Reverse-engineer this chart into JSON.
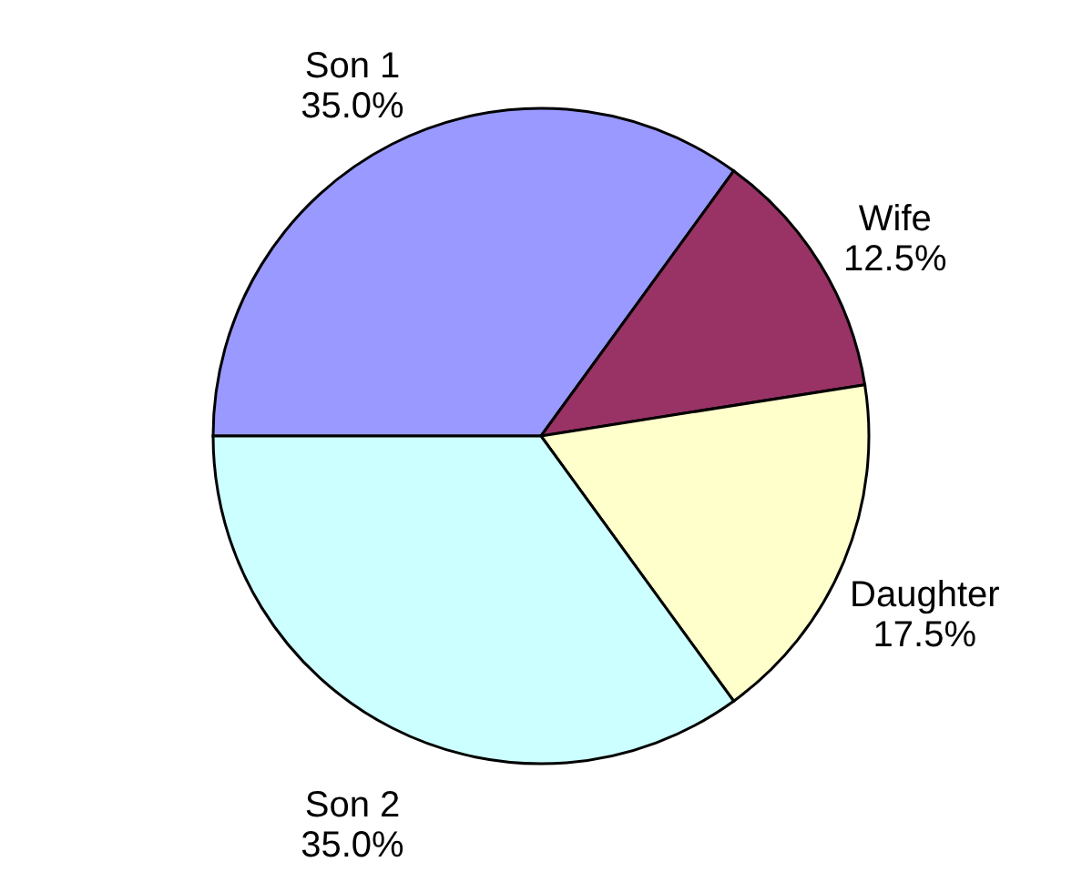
{
  "chart_data": {
    "type": "pie",
    "categories": [
      "Son 1",
      "Wife",
      "Daughter",
      "Son 2"
    ],
    "values": [
      35,
      12.5,
      17.5,
      35
    ],
    "value_labels": [
      "35.0%",
      "12.5%",
      "17.5%",
      "35.0%"
    ],
    "colors": [
      "#9999ff",
      "#993366",
      "#ffffcc",
      "#ccffff"
    ],
    "legend": false
  }
}
